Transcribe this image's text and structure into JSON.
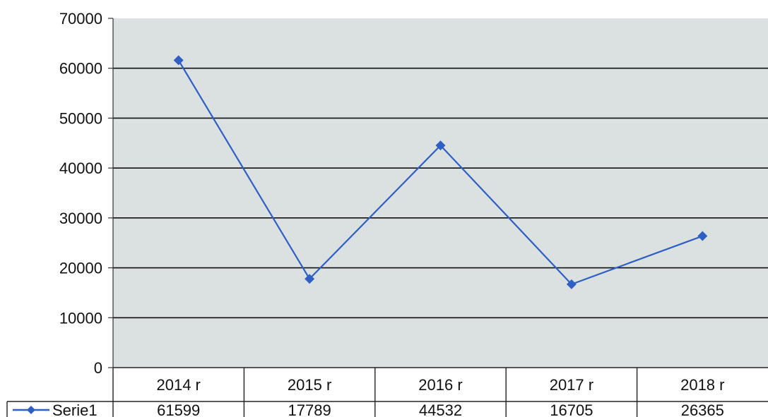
{
  "chart_data": {
    "type": "line",
    "categories": [
      "2014 r",
      "2015 r",
      "2016 r",
      "2017 r",
      "2018 r"
    ],
    "series": [
      {
        "name": "Serie1",
        "values": [
          61599,
          17789,
          44532,
          16705,
          26365
        ]
      }
    ],
    "ylim": [
      0,
      70000
    ],
    "yticks": [
      0,
      10000,
      20000,
      30000,
      40000,
      50000,
      60000,
      70000
    ],
    "title": "",
    "xlabel": "",
    "ylabel": "",
    "grid": true,
    "data_table": true,
    "legend": "data-table-left",
    "colors": {
      "series": "#2f5fc4",
      "plot_background": "#dbe1e1",
      "gridline": "#111111"
    }
  }
}
